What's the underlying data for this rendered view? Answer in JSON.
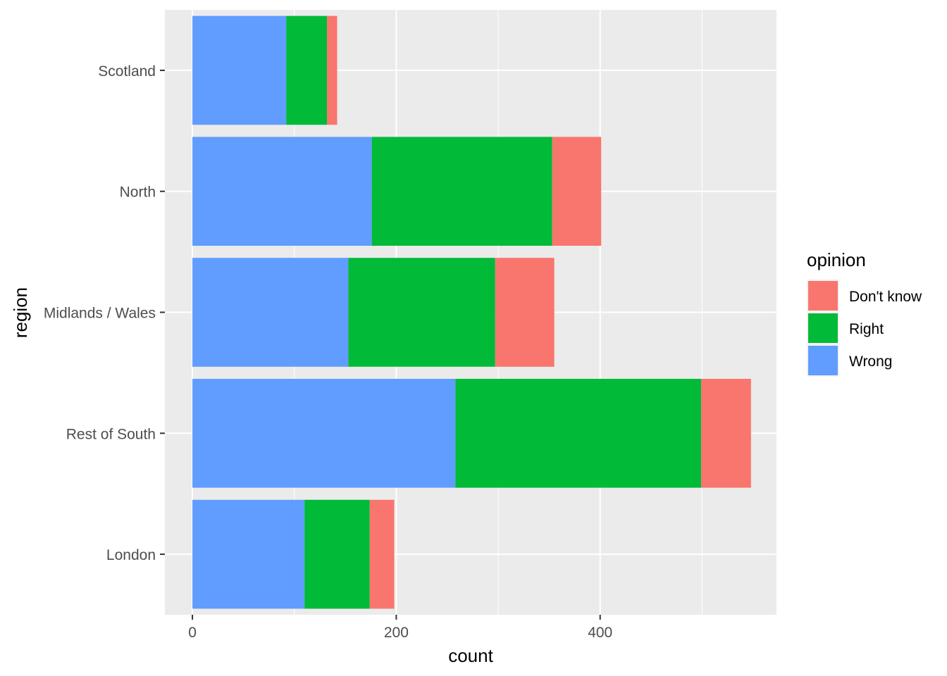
{
  "chart_data": {
    "type": "bar",
    "orientation": "horizontal",
    "stacked": true,
    "title": "",
    "xlabel": "count",
    "ylabel": "region",
    "categories": [
      "London",
      "Rest of South",
      "Midlands / Wales",
      "North",
      "Scotland"
    ],
    "series": [
      {
        "name": "Wrong",
        "color": "#619CFF",
        "values": [
          110,
          258,
          153,
          176,
          92
        ]
      },
      {
        "name": "Right",
        "color": "#00BA38",
        "values": [
          64,
          241,
          144,
          177,
          40
        ]
      },
      {
        "name": "Don't know",
        "color": "#F8766D",
        "values": [
          24,
          49,
          58,
          48,
          10
        ]
      }
    ],
    "xlim": [
      -27,
      573
    ],
    "xticks": [
      0,
      200,
      400
    ],
    "grid": true,
    "legend": {
      "title": "opinion",
      "position": "right",
      "order": [
        "Don't know",
        "Right",
        "Wrong"
      ]
    }
  }
}
